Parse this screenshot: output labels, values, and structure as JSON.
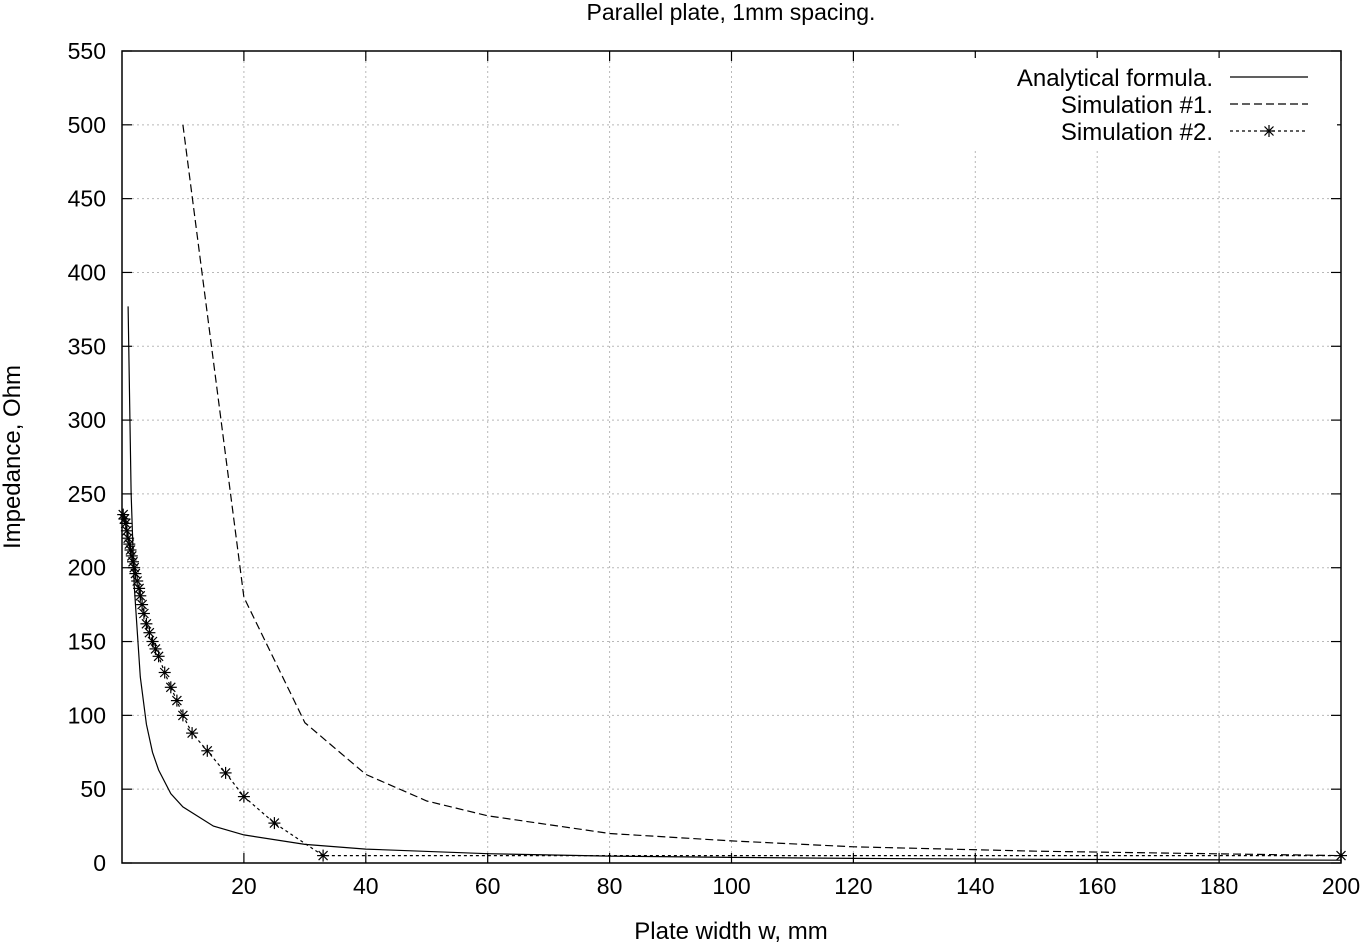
{
  "chart_data": {
    "type": "line",
    "title": "Parallel plate, 1mm spacing.",
    "xlabel": "Plate width w, mm",
    "ylabel": "Impedance, Ohm",
    "xlim": [
      0,
      200
    ],
    "ylim": [
      0,
      550
    ],
    "xticks": [
      20,
      40,
      60,
      80,
      100,
      120,
      140,
      160,
      180,
      200
    ],
    "yticks": [
      0,
      50,
      100,
      150,
      200,
      250,
      300,
      350,
      400,
      450,
      500,
      550
    ],
    "grid": true,
    "legend_position": "top-right",
    "series": [
      {
        "name": "Analytical formula.",
        "style": "solid",
        "marker": "none",
        "color": "#000000",
        "x": [
          1,
          1.5,
          2,
          3,
          4,
          5,
          6,
          8,
          10,
          15,
          20,
          30,
          40,
          60,
          80,
          100,
          120,
          150,
          200
        ],
        "y": [
          377,
          251,
          188,
          126,
          94,
          75,
          63,
          47,
          38,
          25,
          19,
          12.6,
          9.4,
          6.3,
          4.7,
          3.8,
          3.1,
          2.5,
          1.9
        ]
      },
      {
        "name": "Simulation #1.",
        "style": "dashed",
        "marker": "none",
        "color": "#000000",
        "x": [
          10,
          20,
          30,
          40,
          50,
          60,
          80,
          100,
          120,
          150,
          200
        ],
        "y": [
          500,
          180,
          95,
          60,
          42,
          32,
          20,
          15,
          11,
          8,
          5
        ]
      },
      {
        "name": "Simulation #2.",
        "style": "dotted",
        "marker": "asterisk",
        "color": "#000000",
        "x": [
          0.2,
          0.4,
          0.6,
          0.8,
          1.0,
          1.2,
          1.4,
          1.6,
          1.8,
          2.0,
          2.2,
          2.5,
          2.8,
          3.0,
          3.3,
          3.6,
          4.0,
          4.5,
          5.0,
          5.5,
          6.0,
          7.0,
          8.0,
          9.0,
          10.0,
          11.5,
          14.0,
          17.0,
          20.0,
          25.0,
          33.0,
          200.0
        ],
        "y": [
          236,
          233,
          230,
          225,
          220,
          216,
          212,
          208,
          204,
          200,
          196,
          191,
          186,
          181,
          175,
          169,
          162,
          156,
          150,
          145,
          140,
          129,
          119,
          110,
          100,
          88,
          76,
          61,
          45,
          27,
          5,
          5
        ]
      }
    ]
  }
}
